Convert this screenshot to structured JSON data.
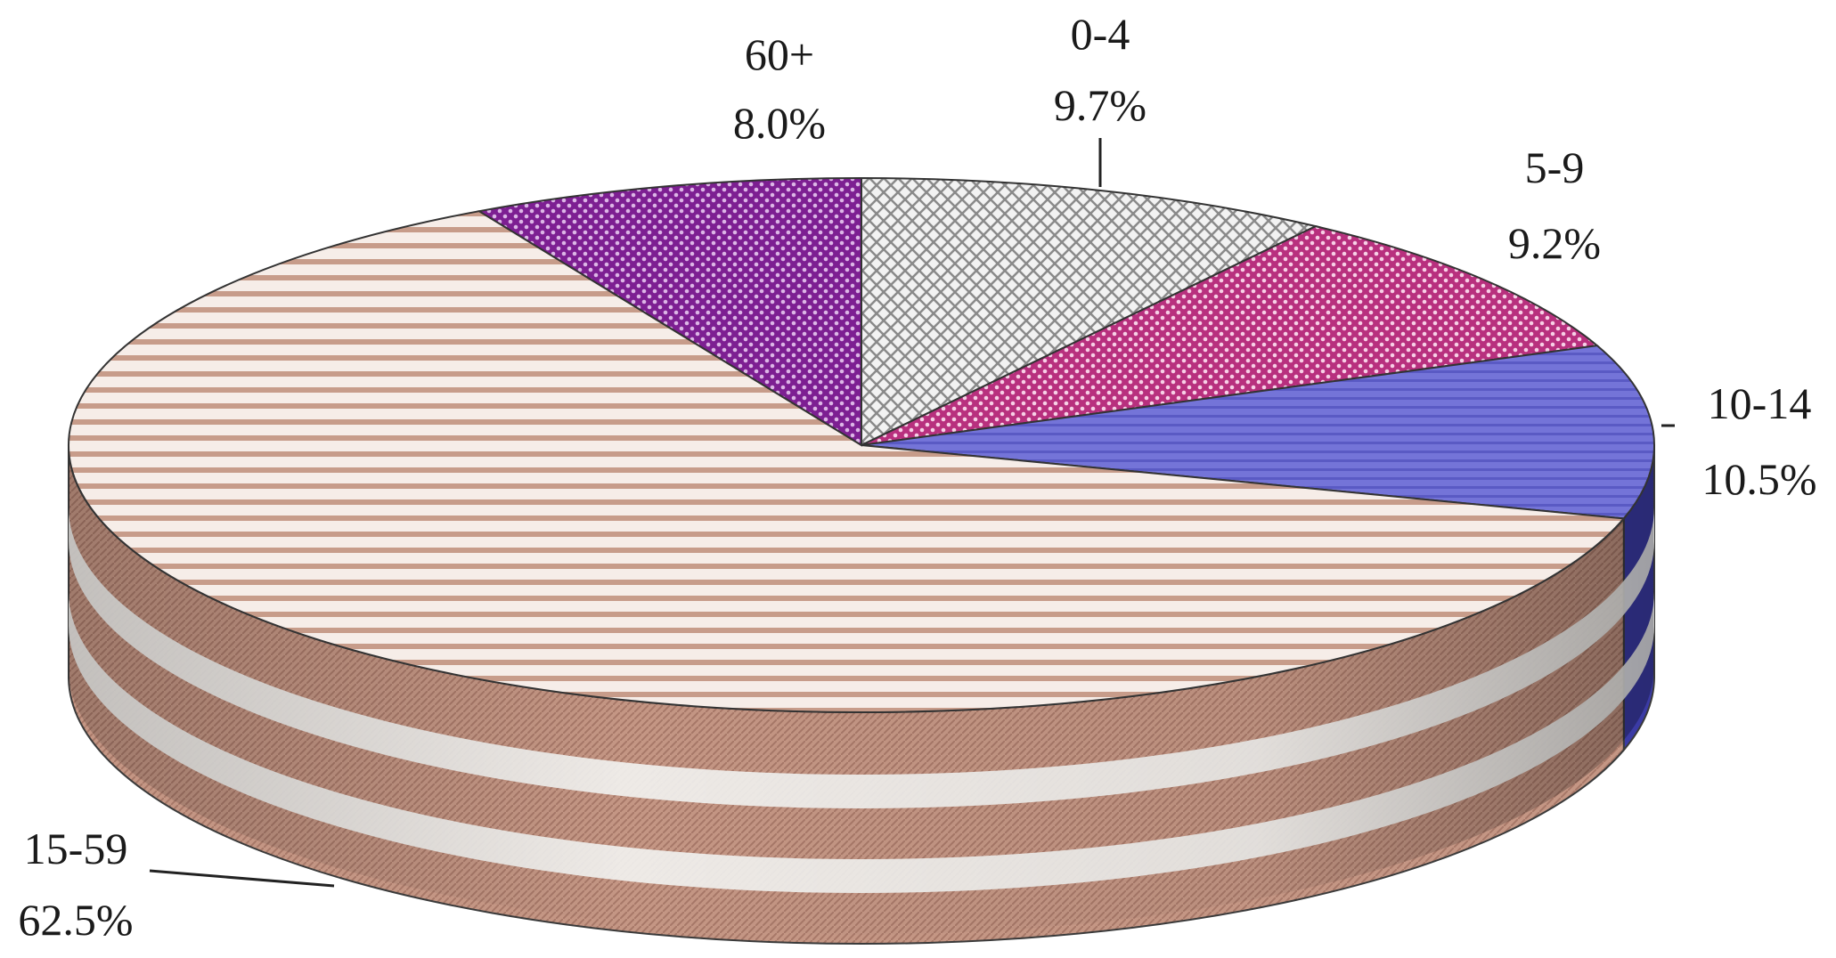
{
  "chart_data": {
    "type": "pie",
    "title": "",
    "style": "3d",
    "slices": [
      {
        "label": "0-4",
        "value": 9.7,
        "display": "9.7%",
        "color": "#d9d9d9",
        "pattern": "diamond"
      },
      {
        "label": "5-9",
        "value": 9.2,
        "display": "9.2%",
        "color": "#c0408a",
        "pattern": "checker"
      },
      {
        "label": "10-14",
        "value": 10.5,
        "display": "10.5%",
        "color": "#6e6ed6",
        "pattern": "horizontal-lines"
      },
      {
        "label": "15-59",
        "value": 62.5,
        "display": "62.5%",
        "color": "#caa08e",
        "pattern": "horizontal-stripes"
      },
      {
        "label": "60+",
        "value": 8.0,
        "display": "8.0%",
        "color": "#8a2a9c",
        "pattern": "checker"
      }
    ]
  }
}
